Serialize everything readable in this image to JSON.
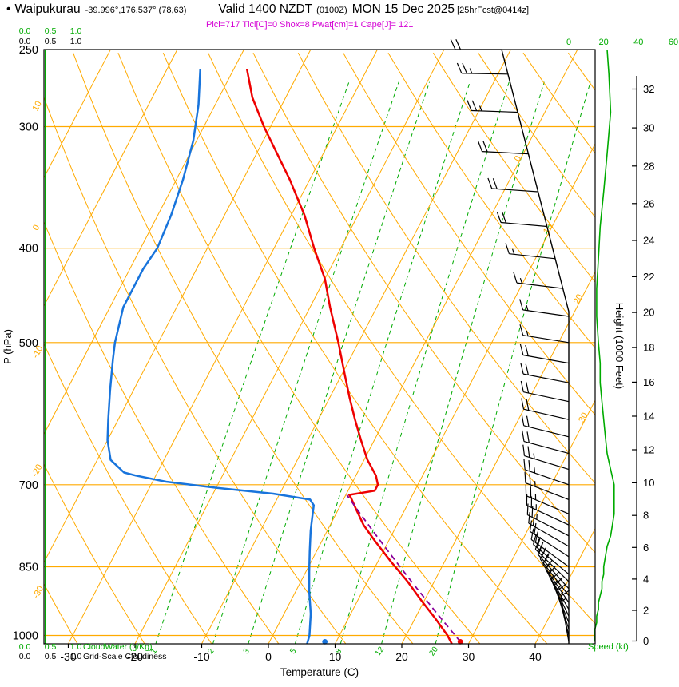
{
  "header": {
    "bullet": "•",
    "station": "Waipukurau",
    "coords": "-39.996°,176.537° (78,63)",
    "valid": "Valid 1400 NZDT",
    "valid_z": "(0100Z)",
    "valid_date": "MON 15 Dec 2025",
    "fcst_tag": "[25hrFcst@0414z]",
    "indices": "Plcl=717 Tlcl[C]=0 Shox=8 Pwat[cm]=1 Cape[J]= 121"
  },
  "colors": {
    "grid_orange": "#FFAA00",
    "green": "#00AB00",
    "temperature_red": "#EE0000",
    "dewpoint_blue": "#1874DC",
    "parcel_purple": "#880099",
    "indices_magenta": "#D400D4",
    "barb_black": "#000000"
  },
  "chart_data": {
    "type": "line",
    "chart_kind": "skew-t-log-p-sounding",
    "title": "Waipukurau sounding valid 1400 NZDT (0100Z) MON 15 Dec 2025",
    "xlabel": "Temperature (C)",
    "ylabel": "P (hPa)",
    "pressure_axis_label": "P (hPa)",
    "pressure_ticks": [
      250,
      300,
      400,
      500,
      700,
      850,
      1000
    ],
    "pressure_range": [
      250,
      1020
    ],
    "temp_axis_label": "Temperature (C)",
    "temp_ticks": [
      -30,
      -20,
      -10,
      0,
      10,
      20,
      30,
      40
    ],
    "temp_range_at_surface": [
      -33.6,
      49
    ],
    "height_axis_label": "Height (1000 Feet)",
    "height_ticks": [
      0,
      2,
      4,
      6,
      8,
      10,
      12,
      14,
      16,
      18,
      20,
      22,
      24,
      26,
      28,
      30,
      32
    ],
    "speed_axis_label": "Speed (kt)",
    "speed_ticks": [
      0,
      20,
      40,
      60
    ],
    "cloudwater_label": "CloudWater (g/Kg)",
    "cloudwater_scale_ticks": [
      "0.0",
      "0.5",
      "1.0"
    ],
    "cloudiness_label": "Grid-Scale Cloudiness",
    "cloudiness_scale_ticks": [
      "0.0",
      "0.5",
      "1.0"
    ],
    "isotherm_label_values": [
      0,
      10,
      20,
      30
    ],
    "dry_adiabat_label_values": [
      10,
      0,
      -10,
      -20,
      -30
    ],
    "mixing_ratio_lines_g_per_kg": [
      1,
      2,
      3,
      5,
      8,
      12,
      20
    ],
    "temperature_profile_p_T": [
      [
        1020,
        27.5
      ],
      [
        1000,
        26.2
      ],
      [
        960,
        23
      ],
      [
        920,
        19.5
      ],
      [
        880,
        16
      ],
      [
        840,
        12
      ],
      [
        800,
        8
      ],
      [
        770,
        5
      ],
      [
        740,
        2.5
      ],
      [
        722,
        1
      ],
      [
        717,
        0.5
      ],
      [
        710,
        4
      ],
      [
        700,
        4
      ],
      [
        685,
        3
      ],
      [
        660,
        0.5
      ],
      [
        630,
        -2
      ],
      [
        600,
        -4.5
      ],
      [
        570,
        -7
      ],
      [
        540,
        -9.5
      ],
      [
        500,
        -13
      ],
      [
        460,
        -17
      ],
      [
        430,
        -20
      ],
      [
        400,
        -24
      ],
      [
        370,
        -28
      ],
      [
        340,
        -33
      ],
      [
        300,
        -41
      ],
      [
        280,
        -45
      ],
      [
        262,
        -48
      ]
    ],
    "dewpoint_profile_p_T": [
      [
        1020,
        5.8
      ],
      [
        1000,
        5.5
      ],
      [
        950,
        4
      ],
      [
        900,
        2
      ],
      [
        860,
        0.5
      ],
      [
        820,
        -1
      ],
      [
        780,
        -2.5
      ],
      [
        750,
        -3.5
      ],
      [
        735,
        -4
      ],
      [
        725,
        -5
      ],
      [
        715,
        -11
      ],
      [
        705,
        -20
      ],
      [
        695,
        -28
      ],
      [
        685,
        -33
      ],
      [
        680,
        -35
      ],
      [
        660,
        -38
      ],
      [
        630,
        -40
      ],
      [
        600,
        -41.5
      ],
      [
        560,
        -43.5
      ],
      [
        520,
        -45.5
      ],
      [
        500,
        -46.5
      ],
      [
        460,
        -48
      ],
      [
        420,
        -48
      ],
      [
        400,
        -47.5
      ],
      [
        370,
        -48
      ],
      [
        340,
        -49
      ],
      [
        310,
        -50.5
      ],
      [
        285,
        -52.5
      ],
      [
        262,
        -55
      ]
    ],
    "parcel": {
      "theta_k": 300.5,
      "p_start_hPa": 1015,
      "p_lcl_hPa": 717,
      "t_lcl_c": 0
    },
    "surface_markers": {
      "p_hPa": 1015,
      "temp_c": 28.6,
      "dewpoint_c": 8.3
    },
    "wind_profile_p_dir_spd": [
      [
        1015,
        350,
        15
      ],
      [
        1000,
        346,
        15
      ],
      [
        985,
        342,
        15
      ],
      [
        970,
        338,
        16
      ],
      [
        955,
        334,
        16
      ],
      [
        940,
        330,
        17
      ],
      [
        925,
        326,
        17
      ],
      [
        910,
        322,
        18
      ],
      [
        895,
        318,
        19
      ],
      [
        880,
        314,
        19
      ],
      [
        865,
        310,
        20
      ],
      [
        850,
        306,
        20
      ],
      [
        830,
        303,
        21
      ],
      [
        810,
        300,
        22
      ],
      [
        790,
        297,
        24
      ],
      [
        770,
        295,
        25
      ],
      [
        750,
        293,
        26
      ],
      [
        725,
        291,
        26
      ],
      [
        700,
        289,
        26
      ],
      [
        675,
        287,
        24
      ],
      [
        650,
        285,
        22
      ],
      [
        625,
        284,
        21
      ],
      [
        600,
        283,
        20
      ],
      [
        575,
        282,
        19
      ],
      [
        550,
        281,
        18
      ],
      [
        525,
        280,
        18
      ],
      [
        500,
        279,
        17
      ],
      [
        470,
        278,
        16
      ],
      [
        440,
        277,
        16
      ],
      [
        410,
        276,
        17
      ],
      [
        380,
        275,
        18
      ],
      [
        350,
        274,
        20
      ],
      [
        320,
        273,
        22
      ],
      [
        290,
        272,
        24
      ],
      [
        265,
        271,
        23
      ],
      [
        250,
        270,
        22
      ]
    ],
    "cloud_water_g_per_kg": 0
  }
}
